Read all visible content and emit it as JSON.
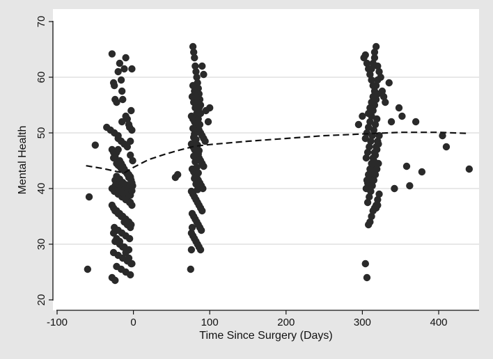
{
  "chart_data": {
    "type": "scatter",
    "title": "",
    "xlabel": "Time Since Surgery (Days)",
    "ylabel": "Mental Health",
    "xlim": [
      -100,
      440
    ],
    "ylim": [
      20,
      70
    ],
    "xticks": [
      -100,
      0,
      100,
      200,
      300,
      400
    ],
    "yticks": [
      20,
      30,
      40,
      50,
      60,
      70
    ],
    "xtick_labels": [
      "-100",
      "0",
      "100",
      "200",
      "300",
      "400"
    ],
    "ytick_labels": [
      "20",
      "30",
      "40",
      "50",
      "60",
      "70"
    ],
    "grid": "horizontal",
    "legend": "none",
    "colors": {
      "background": "#e6e6e6",
      "plot_area": "#ffffff",
      "points": "#2a2a2a",
      "trend": "#111111",
      "grid": "#d9d9d9"
    },
    "trend_line": {
      "style": "dashed",
      "points": [
        [
          -62,
          44.1
        ],
        [
          -40,
          43.6
        ],
        [
          -20,
          43.0
        ],
        [
          -12,
          42.8
        ],
        [
          0,
          43.8
        ],
        [
          20,
          45.2
        ],
        [
          40,
          46.1
        ],
        [
          60,
          46.9
        ],
        [
          80,
          47.6
        ],
        [
          100,
          47.9
        ],
        [
          150,
          48.5
        ],
        [
          200,
          49.0
        ],
        [
          250,
          49.5
        ],
        [
          300,
          49.8
        ],
        [
          350,
          50.1
        ],
        [
          400,
          50.1
        ],
        [
          440,
          49.9
        ]
      ]
    },
    "series": [
      {
        "x": [
          -60,
          -58,
          -50,
          -35,
          -30,
          -28,
          -26,
          -25,
          -24,
          -22,
          -20,
          -18,
          -16,
          -15,
          -14,
          -12,
          -10,
          -8,
          -6,
          -4,
          -3,
          -2,
          -1,
          -28,
          -26,
          -24,
          -22,
          -20,
          -18,
          -16,
          -14,
          -12,
          -10,
          -8,
          -6,
          -4,
          -3,
          -2,
          -1,
          -28,
          -25,
          -20,
          -15,
          -10,
          -5,
          -2,
          -26,
          -22,
          -18,
          -14,
          -10,
          -6,
          -3,
          -25,
          -20,
          -15,
          -10,
          -5,
          -24,
          -18,
          -12,
          -6,
          -26,
          -20,
          -14,
          -8,
          -3,
          -22,
          -16,
          -10,
          -4,
          -28,
          -24,
          -20,
          -16,
          -12,
          -8,
          -4,
          -26,
          -22,
          -18,
          -14,
          -10,
          -6,
          -2,
          -24,
          -20,
          -16,
          -12,
          -8,
          -4,
          -28,
          -24,
          -20,
          -16,
          -12,
          -8,
          -4,
          -26,
          -22,
          -18,
          -14,
          -10,
          -6,
          -2,
          -24,
          -20,
          -16,
          -12,
          -8,
          -4,
          -22,
          -18,
          -14,
          -10,
          -6,
          -2,
          -20,
          -16,
          -12,
          -8,
          -4,
          -25,
          -20,
          -15,
          -10,
          -5,
          -2
        ],
        "y": [
          25.5,
          38.5,
          47.8,
          51.0,
          50.5,
          64.2,
          59.0,
          58.5,
          56.0,
          55.5,
          61.0,
          62.5,
          59.5,
          57.5,
          56.0,
          61.5,
          63.5,
          52.5,
          51.5,
          48.5,
          54.0,
          61.5,
          45.0,
          47.0,
          46.5,
          45.8,
          46.5,
          47.0,
          45.0,
          44.5,
          44.0,
          43.5,
          43.0,
          42.8,
          42.5,
          42.0,
          41.5,
          41.0,
          40.5,
          40.0,
          39.5,
          39.0,
          38.5,
          38.0,
          37.5,
          37.0,
          36.5,
          36.0,
          35.5,
          35.0,
          34.5,
          34.0,
          33.5,
          33.0,
          32.5,
          32.0,
          31.5,
          31.0,
          30.5,
          30.0,
          29.5,
          29.0,
          28.5,
          28.0,
          27.5,
          27.0,
          26.5,
          26.0,
          25.5,
          25.0,
          24.5,
          24.0,
          23.5,
          49.0,
          48.5,
          48.0,
          47.5,
          46.0,
          45.5,
          44.5,
          44.0,
          43.5,
          43.0,
          42.0,
          41.0,
          40.5,
          40.0,
          39.5,
          39.0,
          38.0,
          37.5,
          37.0,
          36.0,
          35.5,
          35.0,
          34.0,
          33.5,
          33.0,
          32.0,
          31.0,
          30.5,
          29.5,
          28.5,
          27.5,
          26.5,
          41.5,
          40.8,
          40.2,
          39.8,
          39.4,
          38.8,
          42.2,
          41.7,
          41.1,
          40.7,
          40.1,
          39.6,
          44.2,
          43.6,
          43.2,
          42.6,
          42.1,
          50.0,
          49.5,
          52.0,
          53.0,
          51.0,
          50.5
        ]
      },
      {
        "x": [
          55,
          58,
          75,
          76,
          77,
          78,
          79,
          80,
          81,
          82,
          83,
          84,
          85,
          86,
          87,
          88,
          90,
          92,
          95,
          98,
          100,
          76,
          78,
          80,
          82,
          84,
          86,
          88,
          90,
          92,
          94,
          76,
          78,
          80,
          82,
          84,
          86,
          88,
          90,
          92,
          77,
          79,
          81,
          83,
          85,
          87,
          89,
          91,
          76,
          78,
          80,
          82,
          84,
          86,
          88,
          90,
          77,
          79,
          81,
          83,
          85,
          87,
          89,
          76,
          78,
          80,
          82,
          84,
          86,
          88,
          77,
          79,
          81,
          83,
          85,
          87,
          78,
          80,
          82,
          84,
          86,
          79,
          81,
          83,
          85,
          80,
          82,
          84,
          78,
          80,
          82,
          84,
          86,
          88,
          79,
          81,
          83,
          85,
          87
        ],
        "y": [
          42.0,
          42.5,
          25.5,
          29.0,
          33.0,
          65.5,
          64.5,
          63.5,
          62.0,
          61.0,
          60.0,
          59.0,
          58.0,
          57.0,
          56.0,
          55.0,
          62.0,
          60.5,
          54.0,
          52.0,
          54.5,
          53.0,
          52.5,
          52.0,
          51.5,
          51.0,
          50.5,
          50.0,
          49.5,
          49.0,
          48.5,
          48.0,
          47.5,
          47.0,
          46.5,
          46.0,
          45.5,
          45.0,
          44.5,
          44.0,
          43.5,
          43.0,
          42.5,
          42.0,
          41.5,
          41.0,
          40.5,
          40.0,
          39.5,
          39.0,
          38.5,
          38.0,
          37.5,
          37.0,
          36.5,
          36.0,
          35.5,
          35.0,
          34.5,
          34.0,
          33.5,
          33.0,
          32.5,
          32.0,
          31.5,
          31.0,
          30.5,
          30.0,
          29.5,
          29.0,
          56.5,
          55.5,
          54.5,
          53.5,
          52.5,
          51.5,
          50.8,
          49.8,
          48.8,
          47.8,
          46.8,
          45.8,
          44.8,
          43.8,
          42.8,
          41.8,
          40.8,
          39.8,
          58.5,
          57.5,
          56.5,
          55.5,
          54.5,
          53.5,
          49.2,
          48.2,
          47.2,
          46.2,
          45.2
        ]
      },
      {
        "x": [
          295,
          300,
          302,
          304,
          306,
          308,
          310,
          312,
          314,
          316,
          318,
          320,
          322,
          324,
          326,
          328,
          330,
          335,
          338,
          342,
          348,
          352,
          358,
          362,
          370,
          378,
          405,
          410,
          440,
          304,
          306,
          308,
          310,
          312,
          314,
          316,
          318,
          320,
          322,
          305,
          307,
          309,
          311,
          313,
          315,
          317,
          319,
          321,
          304,
          306,
          308,
          310,
          312,
          314,
          316,
          318,
          320,
          305,
          307,
          309,
          311,
          313,
          315,
          317,
          319,
          306,
          308,
          310,
          312,
          314,
          316,
          318,
          320,
          322,
          307,
          309,
          311,
          313,
          315,
          317,
          319,
          321,
          308,
          310,
          312,
          314,
          316,
          318,
          320,
          310,
          312,
          314,
          316,
          318,
          320
        ],
        "y": [
          51.5,
          53.0,
          63.5,
          64.0,
          62.5,
          61.5,
          60.5,
          59.5,
          58.5,
          64.5,
          65.5,
          62.0,
          61.0,
          60.0,
          57.5,
          56.5,
          55.5,
          59.0,
          52.0,
          40.0,
          54.5,
          53.0,
          44.0,
          40.5,
          52.0,
          43.0,
          49.5,
          47.5,
          43.5,
          26.5,
          24.0,
          33.5,
          34.0,
          35.0,
          36.0,
          36.5,
          37.0,
          38.0,
          39.0,
          40.0,
          41.0,
          42.0,
          43.0,
          44.0,
          45.0,
          46.0,
          47.0,
          48.0,
          49.0,
          50.0,
          51.0,
          52.0,
          53.0,
          54.0,
          55.0,
          56.0,
          57.0,
          45.5,
          46.5,
          47.5,
          48.5,
          49.5,
          50.5,
          51.5,
          52.5,
          41.5,
          42.5,
          43.5,
          44.5,
          45.5,
          46.5,
          47.5,
          48.5,
          49.5,
          37.5,
          38.5,
          39.5,
          40.5,
          41.5,
          42.5,
          43.5,
          44.5,
          53.5,
          54.5,
          55.5,
          56.5,
          57.5,
          58.5,
          59.5,
          60.5,
          61.5,
          62.5,
          63.5,
          36.5,
          37.0
        ]
      }
    ]
  }
}
